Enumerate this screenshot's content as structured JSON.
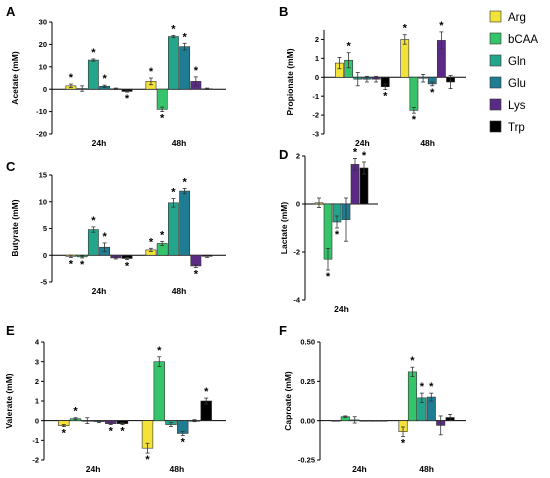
{
  "legend": [
    {
      "name": "Arg",
      "color": "#f2e23a"
    },
    {
      "name": "bCAA",
      "color": "#35c46a"
    },
    {
      "name": "Gln",
      "color": "#25a48c"
    },
    {
      "name": "Glu",
      "color": "#1f7d93"
    },
    {
      "name": "Lys",
      "color": "#5b2a86"
    },
    {
      "name": "Trp",
      "color": "#000000"
    }
  ],
  "chart_data": [
    {
      "type": "bar",
      "panel": "A",
      "ylabel": "Acetate (mM)",
      "ylim": [
        -20,
        30
      ],
      "yticks": [
        -20,
        -10,
        0,
        10,
        20,
        30
      ],
      "categories": [
        "24h",
        "48h"
      ],
      "series": [
        {
          "name": "Arg",
          "values": [
            1.5,
            3.5
          ],
          "errors": [
            0.8,
            1.5
          ],
          "sig": [
            true,
            true
          ]
        },
        {
          "name": "bCAA",
          "values": [
            0.3,
            -9.0
          ],
          "errors": [
            1.2,
            1.0
          ],
          "sig": [
            false,
            true
          ]
        },
        {
          "name": "Gln",
          "values": [
            13.0,
            23.5
          ],
          "errors": [
            0.5,
            0.5
          ],
          "sig": [
            true,
            true
          ]
        },
        {
          "name": "Glu",
          "values": [
            1.3,
            19.0
          ],
          "errors": [
            0.5,
            1.5
          ],
          "sig": [
            true,
            true
          ]
        },
        {
          "name": "Lys",
          "values": [
            0.2,
            3.5
          ],
          "errors": [
            0.3,
            2.0
          ],
          "sig": [
            false,
            true
          ]
        },
        {
          "name": "Trp",
          "values": [
            -1.0,
            0.2
          ],
          "errors": [
            0.3,
            0.3
          ],
          "sig": [
            true,
            false
          ]
        }
      ]
    },
    {
      "type": "bar",
      "panel": "B",
      "ylabel": "Propionate (mM)",
      "ylim": [
        -3,
        2.5
      ],
      "yticks": [
        -3,
        -2,
        -1,
        0,
        1,
        2
      ],
      "categories": [
        "24h",
        "48h"
      ],
      "series": [
        {
          "name": "Arg",
          "values": [
            0.75,
            2.0
          ],
          "errors": [
            0.3,
            0.25
          ],
          "sig": [
            false,
            true
          ]
        },
        {
          "name": "bCAA",
          "values": [
            0.9,
            -1.75
          ],
          "errors": [
            0.4,
            0.15
          ],
          "sig": [
            true,
            true
          ]
        },
        {
          "name": "Gln",
          "values": [
            -0.1,
            -0.05
          ],
          "errors": [
            0.35,
            0.2
          ],
          "sig": [
            false,
            false
          ]
        },
        {
          "name": "Glu",
          "values": [
            -0.1,
            -0.35
          ],
          "errors": [
            0.15,
            0.1
          ],
          "sig": [
            false,
            true
          ]
        },
        {
          "name": "Lys",
          "values": [
            -0.1,
            1.95
          ],
          "errors": [
            0.15,
            0.45
          ],
          "sig": [
            false,
            true
          ]
        },
        {
          "name": "Trp",
          "values": [
            -0.5,
            -0.25
          ],
          "errors": [
            0.15,
            0.35
          ],
          "sig": [
            true,
            false
          ]
        }
      ]
    },
    {
      "type": "bar",
      "panel": "C",
      "ylabel": "Butyrate (mM)",
      "ylim": [
        -5,
        15
      ],
      "yticks": [
        -5,
        0,
        5,
        10,
        15
      ],
      "categories": [
        "24h",
        "48h"
      ],
      "series": [
        {
          "name": "Arg",
          "values": [
            -0.2,
            1.0
          ],
          "errors": [
            0.2,
            0.3
          ],
          "sig": [
            true,
            true
          ]
        },
        {
          "name": "bCAA",
          "values": [
            -0.3,
            2.2
          ],
          "errors": [
            0.2,
            0.4
          ],
          "sig": [
            true,
            true
          ]
        },
        {
          "name": "Gln",
          "values": [
            4.8,
            9.8
          ],
          "errors": [
            0.5,
            0.8
          ],
          "sig": [
            true,
            true
          ]
        },
        {
          "name": "Glu",
          "values": [
            1.5,
            12.0
          ],
          "errors": [
            0.8,
            0.5
          ],
          "sig": [
            true,
            true
          ]
        },
        {
          "name": "Lys",
          "values": [
            -0.5,
            -2.0
          ],
          "errors": [
            0.2,
            0.3
          ],
          "sig": [
            false,
            true
          ]
        },
        {
          "name": "Trp",
          "values": [
            -0.6,
            -0.2
          ],
          "errors": [
            0.2,
            0.2
          ],
          "sig": [
            true,
            false
          ]
        }
      ]
    },
    {
      "type": "bar",
      "panel": "D",
      "ylabel": "Lactate (mM)",
      "ylim": [
        -4,
        2
      ],
      "yticks": [
        -4,
        -2,
        0,
        2
      ],
      "categories": [
        "24h"
      ],
      "series": [
        {
          "name": "Arg",
          "values": [
            0.05
          ],
          "errors": [
            0.2
          ],
          "sig": [
            false
          ]
        },
        {
          "name": "bCAA",
          "values": [
            -2.3
          ],
          "errors": [
            0.45
          ],
          "sig": [
            true
          ]
        },
        {
          "name": "Gln",
          "values": [
            -0.75
          ],
          "errors": [
            0.25
          ],
          "sig": [
            true
          ]
        },
        {
          "name": "Glu",
          "values": [
            -0.65
          ],
          "errors": [
            0.9
          ],
          "sig": [
            false
          ]
        },
        {
          "name": "Lys",
          "values": [
            1.65
          ],
          "errors": [
            0.25
          ],
          "sig": [
            true
          ]
        },
        {
          "name": "Trp",
          "values": [
            1.5
          ],
          "errors": [
            0.25
          ],
          "sig": [
            true
          ]
        }
      ]
    },
    {
      "type": "bar",
      "panel": "E",
      "ylabel": "Valerate (mM)",
      "ylim": [
        -2,
        4
      ],
      "yticks": [
        -2,
        -1,
        0,
        1,
        2,
        3,
        4
      ],
      "categories": [
        "24h",
        "48h"
      ],
      "series": [
        {
          "name": "Arg",
          "values": [
            -0.25,
            -1.4
          ],
          "errors": [
            0.05,
            0.25
          ],
          "sig": [
            true,
            true
          ]
        },
        {
          "name": "bCAA",
          "values": [
            0.1,
            3.0
          ],
          "errors": [
            0.05,
            0.25
          ],
          "sig": [
            true,
            true
          ]
        },
        {
          "name": "Gln",
          "values": [
            0.0,
            -0.2
          ],
          "errors": [
            0.15,
            0.1
          ],
          "sig": [
            false,
            false
          ]
        },
        {
          "name": "Glu",
          "values": [
            -0.05,
            -0.65
          ],
          "errors": [
            0.05,
            0.1
          ],
          "sig": [
            false,
            true
          ]
        },
        {
          "name": "Lys",
          "values": [
            -0.15,
            0.0
          ],
          "errors": [
            0.05,
            0.05
          ],
          "sig": [
            true,
            false
          ]
        },
        {
          "name": "Trp",
          "values": [
            -0.15,
            1.0
          ],
          "errors": [
            0.05,
            0.15
          ],
          "sig": [
            true,
            true
          ]
        }
      ]
    },
    {
      "type": "bar",
      "panel": "F",
      "ylabel": "Caproate (mM)",
      "ylim": [
        -0.25,
        0.5
      ],
      "yticks": [
        -0.25,
        0.0,
        0.25,
        0.5
      ],
      "yticklabels": [
        "-0.25",
        "0.00",
        "0.25",
        "0.50"
      ],
      "categories": [
        "24h",
        "48h"
      ],
      "series": [
        {
          "name": "Arg",
          "values": [
            0.0,
            -0.07
          ],
          "errors": [
            0.0,
            0.03
          ],
          "sig": [
            false,
            true
          ]
        },
        {
          "name": "bCAA",
          "values": [
            0.025,
            0.31
          ],
          "errors": [
            0.005,
            0.03
          ],
          "sig": [
            false,
            true
          ]
        },
        {
          "name": "Gln",
          "values": [
            0.005,
            0.145
          ],
          "errors": [
            0.02,
            0.03
          ],
          "sig": [
            false,
            true
          ]
        },
        {
          "name": "Glu",
          "values": [
            0.0,
            0.15
          ],
          "errors": [
            0.0,
            0.025
          ],
          "sig": [
            false,
            true
          ]
        },
        {
          "name": "Lys",
          "values": [
            0.0,
            -0.03
          ],
          "errors": [
            0.0,
            0.06
          ],
          "sig": [
            false,
            false
          ]
        },
        {
          "name": "Trp",
          "values": [
            0.0,
            0.02
          ],
          "errors": [
            0.0,
            0.02
          ],
          "sig": [
            false,
            false
          ]
        }
      ]
    }
  ],
  "significance_marker": "*"
}
